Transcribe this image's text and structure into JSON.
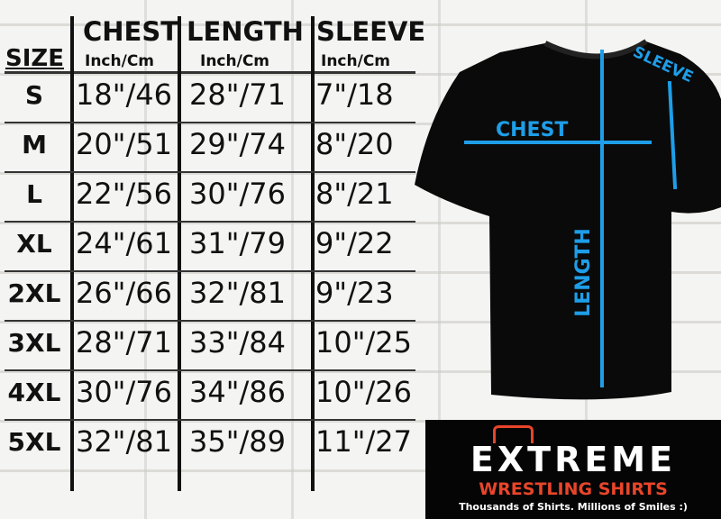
{
  "headers": {
    "size": "SIZE",
    "chest": "CHEST",
    "length": "LENGTH",
    "sleeve": "SLEEVE",
    "unit": "Inch/Cm"
  },
  "rows": [
    {
      "size": "S",
      "chest": "18\"/46",
      "length": "28\"/71",
      "sleeve": "7\"/18"
    },
    {
      "size": "M",
      "chest": "20\"/51",
      "length": "29\"/74",
      "sleeve": "8\"/20"
    },
    {
      "size": "L",
      "chest": "22\"/56",
      "length": "30\"/76",
      "sleeve": "8\"/21"
    },
    {
      "size": "XL",
      "chest": "24\"/61",
      "length": "31\"/79",
      "sleeve": "9\"/22"
    },
    {
      "size": "2XL",
      "chest": "26\"/66",
      "length": "32\"/81",
      "sleeve": "9\"/23"
    },
    {
      "size": "3XL",
      "chest": "28\"/71",
      "length": "33\"/84",
      "sleeve": "10\"/25"
    },
    {
      "size": "4XL",
      "chest": "30\"/76",
      "length": "34\"/86",
      "sleeve": "10\"/26"
    },
    {
      "size": "5XL",
      "chest": "32\"/81",
      "length": "35\"/89",
      "sleeve": "11\"/27"
    }
  ],
  "diagram": {
    "chest": "CHEST",
    "length": "LENGTH",
    "sleeve": "SLEEVE",
    "accent": "#1e9ee8"
  },
  "logo": {
    "title": "EXTREME",
    "subtitle": "WRESTLING SHIRTS",
    "tagline": "Thousands of Shirts. Millions of Smiles :)",
    "accent": "#e8452a"
  }
}
